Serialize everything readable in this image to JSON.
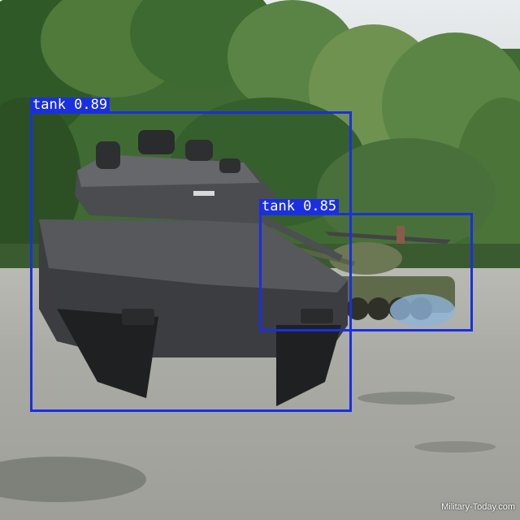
{
  "photo": {
    "subject": "tank",
    "watermark": "Military-Today.com"
  },
  "detections": [
    {
      "label": "tank 0.89",
      "class": "tank",
      "confidence": 0.89
    },
    {
      "label": "tank 0.85",
      "class": "tank",
      "confidence": 0.85
    }
  ],
  "colors": {
    "box": "#1a2fe0",
    "label_text": "#ffffff"
  }
}
